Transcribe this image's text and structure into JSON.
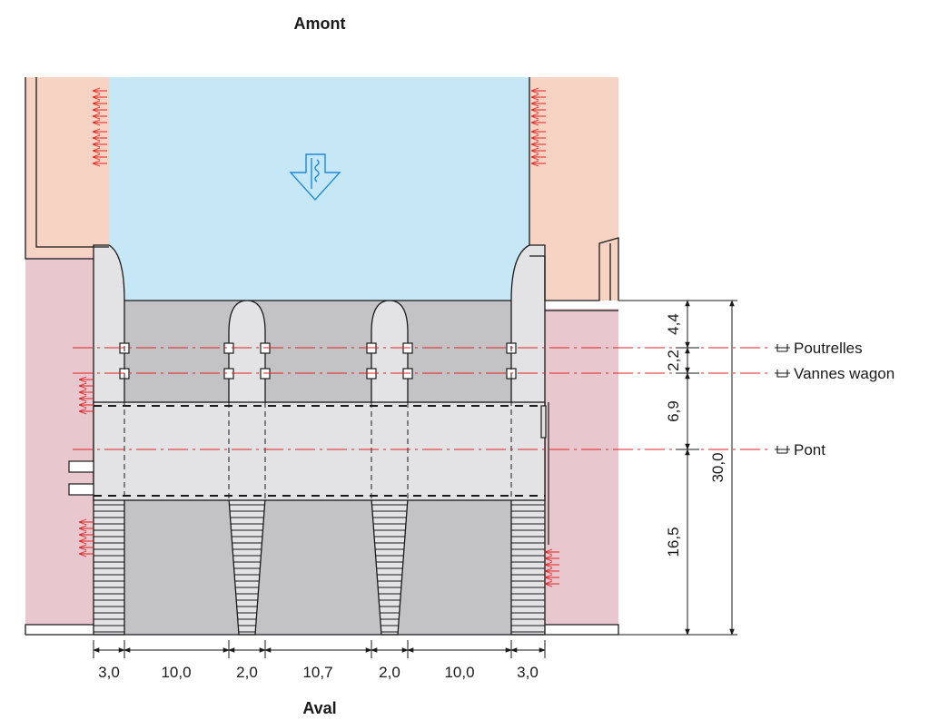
{
  "titles": {
    "upstream": "Amont",
    "downstream": "Aval"
  },
  "axis_labels": {
    "beams": "Poutrelles",
    "wagon_gates": "Vannes wagon",
    "bridge": "Pont"
  },
  "axis_marker_icon": "axis-marker-icon",
  "flow_icon": "flow-direction-arrow-icon",
  "horizontal_dimensions": [
    "3,0",
    "10,0",
    "2,0",
    "10,7",
    "2,0",
    "10,0",
    "3,0"
  ],
  "vertical_dimensions": {
    "partial": [
      "4,4",
      "2,2",
      "6,9",
      "16,5"
    ],
    "total": "30,0"
  },
  "colors": {
    "water": "#c6e7f6",
    "bank_upstream": "#f7d3c4",
    "bank_downstream": "#e8c7cf",
    "concrete": "#e3e3e5",
    "channel": "#c3c3c5",
    "axis_line": "#e02020",
    "hatching": "#e02020",
    "outline": "#1a1a1a"
  }
}
